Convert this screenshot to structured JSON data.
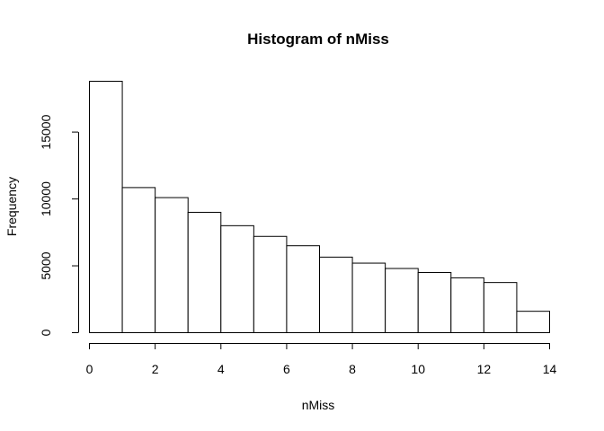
{
  "chart_data": {
    "type": "bar",
    "title": "Histogram of nMiss",
    "xlabel": "nMiss",
    "ylabel": "Frequency",
    "bins": [
      {
        "x0": 0,
        "x1": 1,
        "count": 18800
      },
      {
        "x0": 1,
        "x1": 2,
        "count": 10850
      },
      {
        "x0": 2,
        "x1": 3,
        "count": 10100
      },
      {
        "x0": 3,
        "x1": 4,
        "count": 9000
      },
      {
        "x0": 4,
        "x1": 5,
        "count": 8000
      },
      {
        "x0": 5,
        "x1": 6,
        "count": 7200
      },
      {
        "x0": 6,
        "x1": 7,
        "count": 6500
      },
      {
        "x0": 7,
        "x1": 8,
        "count": 5650
      },
      {
        "x0": 8,
        "x1": 9,
        "count": 5200
      },
      {
        "x0": 9,
        "x1": 10,
        "count": 4800
      },
      {
        "x0": 10,
        "x1": 11,
        "count": 4500
      },
      {
        "x0": 11,
        "x1": 12,
        "count": 4100
      },
      {
        "x0": 12,
        "x1": 13,
        "count": 3750
      },
      {
        "x0": 13,
        "x1": 14,
        "count": 1600
      }
    ],
    "xlim": [
      0,
      14
    ],
    "ylim": [
      0,
      18800
    ],
    "xticks": [
      0,
      2,
      4,
      6,
      8,
      10,
      12,
      14
    ],
    "yticks": [
      0,
      5000,
      10000,
      15000
    ],
    "grid": false,
    "legend": "none"
  }
}
